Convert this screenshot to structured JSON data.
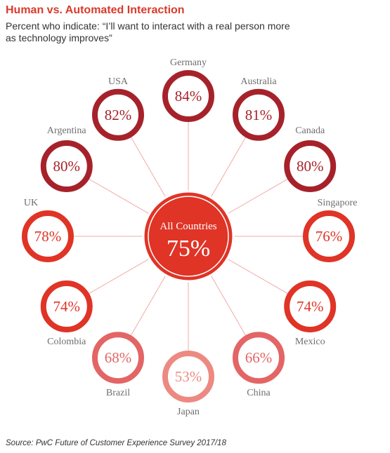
{
  "header": {
    "title": "Human vs. Automated Interaction",
    "subtitle": "Percent who indicate: “I’ll want to interact with a real person more as technology improves”"
  },
  "footer": {
    "source": "Source: PwC Future of Customer Experience Survey 2017/18"
  },
  "colors": {
    "title": "#d93a2b",
    "dark_red": "#a6222a",
    "red": "#df3426",
    "medium": "#e36565",
    "light": "#ec8a82",
    "spoke": "#f2aaa6",
    "center_fill": "#df3426"
  },
  "chart_data": {
    "type": "radial-bubble",
    "center": {
      "label": "All Countries",
      "value_label": "75%",
      "value": 75
    },
    "countries": [
      {
        "name": "Germany",
        "value": 84,
        "value_label": "84%",
        "tone": "dark_red"
      },
      {
        "name": "Australia",
        "value": 81,
        "value_label": "81%",
        "tone": "dark_red"
      },
      {
        "name": "Canada",
        "value": 80,
        "value_label": "80%",
        "tone": "dark_red"
      },
      {
        "name": "Singapore",
        "value": 76,
        "value_label": "76%",
        "tone": "red"
      },
      {
        "name": "Mexico",
        "value": 74,
        "value_label": "74%",
        "tone": "red"
      },
      {
        "name": "China",
        "value": 66,
        "value_label": "66%",
        "tone": "medium"
      },
      {
        "name": "Japan",
        "value": 53,
        "value_label": "53%",
        "tone": "light"
      },
      {
        "name": "Brazil",
        "value": 68,
        "value_label": "68%",
        "tone": "medium"
      },
      {
        "name": "Colombia",
        "value": 74,
        "value_label": "74%",
        "tone": "red"
      },
      {
        "name": "UK",
        "value": 78,
        "value_label": "78%",
        "tone": "red"
      },
      {
        "name": "Argentina",
        "value": 80,
        "value_label": "80%",
        "tone": "dark_red"
      },
      {
        "name": "USA",
        "value": 82,
        "value_label": "82%",
        "tone": "dark_red"
      }
    ]
  }
}
